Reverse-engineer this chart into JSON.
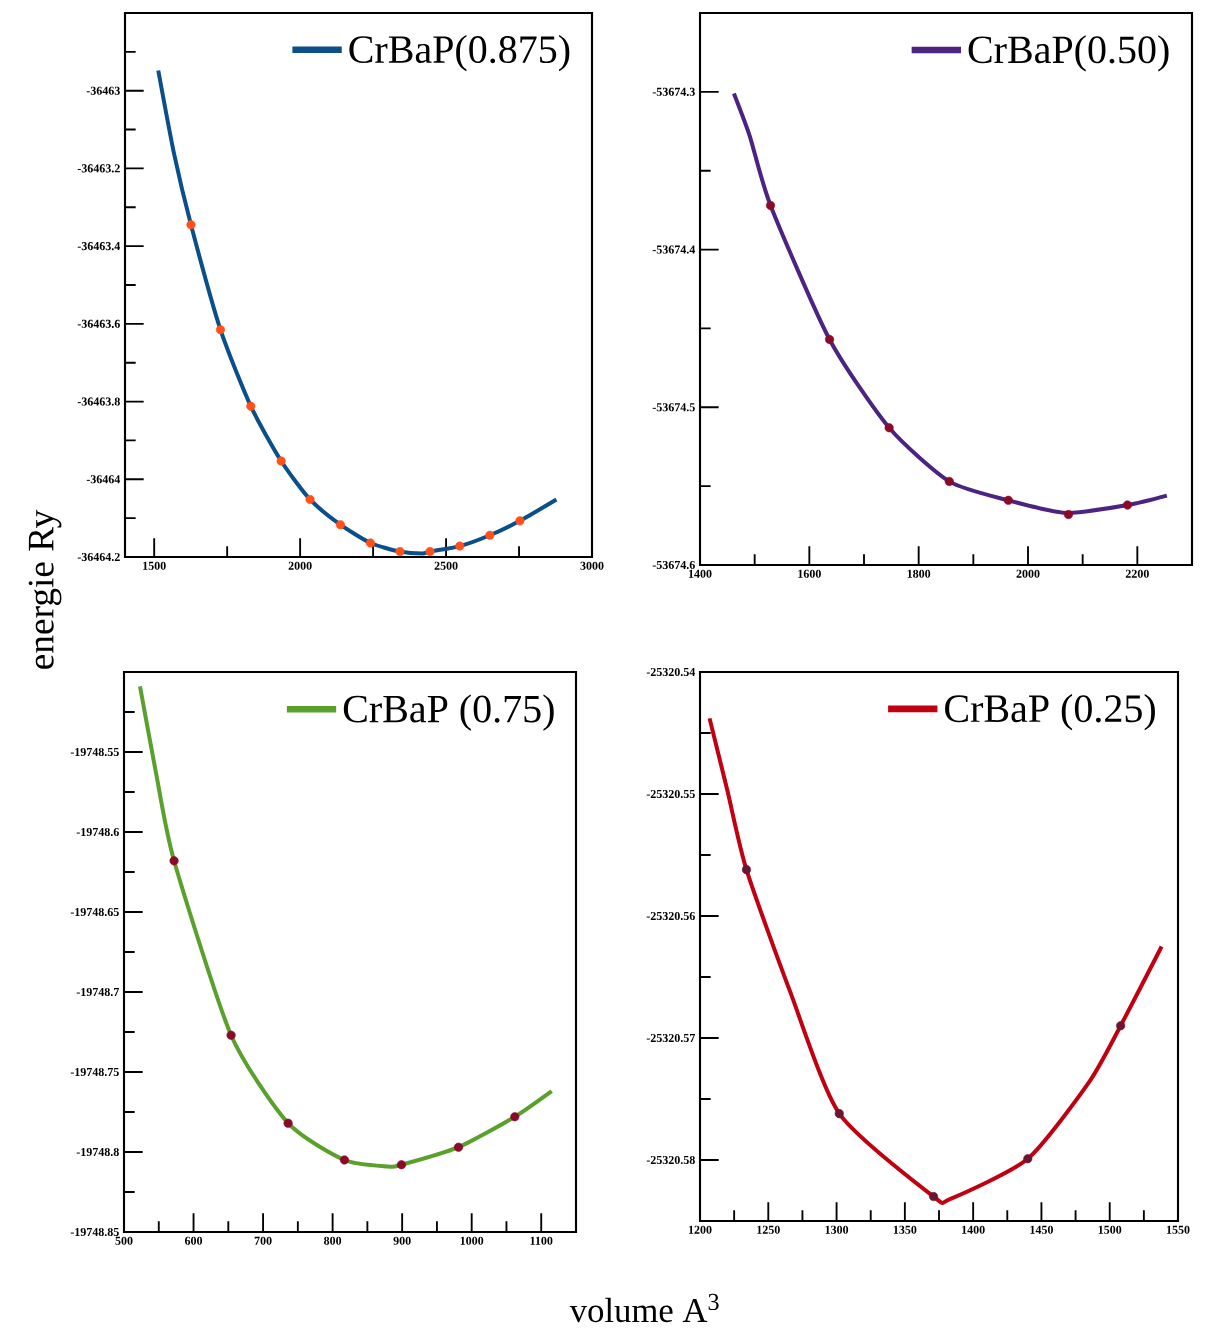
{
  "chart_data": [
    {
      "type": "line",
      "ylabel": "energie Ry",
      "legend": "top right",
      "xlim": [
        1400,
        3000
      ],
      "ylim": [
        -36464.2,
        -36462.8
      ],
      "xticks": [
        1500,
        {
          "value": 1750,
          "label": null
        },
        2000,
        {
          "value": 2250,
          "label": null
        },
        2500,
        {
          "value": 2750,
          "label": null
        },
        3000
      ],
      "yticks": [
        -36464.2,
        {
          "value": -36464.1,
          "label": null
        },
        -36464,
        {
          "value": -36463.9,
          "label": null
        },
        -36463.8,
        {
          "value": -36463.7,
          "label": null
        },
        -36463.6,
        {
          "value": -36463.5,
          "label": null
        },
        -36463.4,
        {
          "value": -36463.3,
          "label": null
        },
        -36463.2,
        {
          "value": -36463.1,
          "label": null
        },
        -36463,
        {
          "value": -36462.9,
          "label": null
        }
      ],
      "series": [
        {
          "name": "CrBaP(0.875)",
          "marker": "none",
          "color": "#0b4f8a",
          "x": [
            1514,
            1568,
            1626,
            1727,
            1831,
            1935,
            2034,
            2138,
            2241,
            2342,
            2419,
            2445,
            2547,
            2650,
            2753,
            2878
          ],
          "values": [
            -36462.948,
            -36463.162,
            -36463.345,
            -36463.615,
            -36463.812,
            -36463.953,
            -36464.052,
            -36464.117,
            -36464.164,
            -36464.186,
            -36464.191,
            -36464.186,
            -36464.172,
            -36464.144,
            -36464.107,
            -36464.052
          ]
        },
        {
          "type": "scatter",
          "marker": "circle",
          "color": "#ff4f1a",
          "x": [
            1626,
            1727,
            1831,
            1935,
            2034,
            2138,
            2241,
            2342,
            2445,
            2547,
            2650,
            2753
          ],
          "values": [
            -36463.345,
            -36463.615,
            -36463.812,
            -36463.953,
            -36464.052,
            -36464.117,
            -36464.164,
            -36464.186,
            -36464.186,
            -36464.172,
            -36464.144,
            -36464.107
          ]
        }
      ]
    },
    {
      "type": "line",
      "legend": "top right",
      "xlim": [
        1400,
        2300
      ],
      "ylim": [
        -53674.6,
        -53674.25
      ],
      "xticks": [
        1400,
        {
          "value": 1500,
          "label": null
        },
        1600,
        {
          "value": 1700,
          "label": null
        },
        1800,
        {
          "value": 1900,
          "label": null
        },
        2000,
        {
          "value": 2100,
          "label": null
        },
        2200
      ],
      "yticks": [
        -53674.6,
        {
          "value": -53674.55,
          "label": null
        },
        -53674.5,
        {
          "value": -53674.45,
          "label": null
        },
        -53674.4,
        {
          "value": -53674.35,
          "label": null
        },
        -53674.3
      ],
      "series": [
        {
          "name": "CrBaP(0.50)",
          "marker": "none",
          "color": "#4b2380",
          "x": [
            1462,
            1491,
            1529,
            1637,
            1746,
            1856,
            1964,
            2070,
            2182,
            2254
          ],
          "values": [
            -53674.301,
            -53674.328,
            -53674.372,
            -53674.457,
            -53674.513,
            -53674.547,
            -53674.559,
            -53674.567,
            -53674.562,
            -53674.556
          ]
        },
        {
          "type": "scatter",
          "marker": "circle",
          "color": "#8b0a2a",
          "x": [
            1529,
            1637,
            1746,
            1856,
            1964,
            2074,
            2182
          ],
          "values": [
            -53674.372,
            -53674.457,
            -53674.513,
            -53674.547,
            -53674.559,
            -53674.568,
            -53674.562
          ]
        }
      ]
    },
    {
      "type": "line",
      "legend": "top right",
      "xlim": [
        500,
        1150
      ],
      "ylim": [
        -19748.85,
        -19748.5
      ],
      "xticks": [
        500,
        {
          "value": 550,
          "label": null
        },
        600,
        {
          "value": 650,
          "label": null
        },
        700,
        {
          "value": 750,
          "label": null
        },
        800,
        {
          "value": 850,
          "label": null
        },
        900,
        {
          "value": 950,
          "label": null
        },
        1000,
        {
          "value": 1050,
          "label": null
        },
        1100
      ],
      "yticks": [
        -19748.85,
        {
          "value": -19748.825,
          "label": null
        },
        -19748.8,
        {
          "value": -19748.775,
          "label": null
        },
        -19748.75,
        {
          "value": -19748.725,
          "label": null
        },
        -19748.7,
        {
          "value": -19748.675,
          "label": null
        },
        -19748.65,
        {
          "value": -19748.625,
          "label": null
        },
        -19748.6,
        {
          "value": -19748.575,
          "label": null
        },
        -19748.55,
        {
          "value": -19748.525,
          "label": null
        }
      ],
      "series": [
        {
          "name": "CrBaP (0.75)",
          "marker": "none",
          "color": "#5aa02c",
          "x": [
            523,
            546,
            572,
            654,
            736,
            817,
            879,
            899,
            981,
            1062,
            1115
          ],
          "values": [
            -19748.509,
            -19748.563,
            -19748.618,
            -19748.727,
            -19748.782,
            -19748.805,
            -19748.809,
            -19748.808,
            -19748.797,
            -19748.778,
            -19748.762
          ]
        },
        {
          "type": "scatter",
          "marker": "circle",
          "color": "#8b0a2a",
          "x": [
            572,
            654,
            736,
            817,
            899,
            981,
            1062
          ],
          "values": [
            -19748.618,
            -19748.727,
            -19748.782,
            -19748.805,
            -19748.808,
            -19748.797,
            -19748.778
          ]
        }
      ]
    },
    {
      "type": "line",
      "xlabel": "volume A$^{3}$",
      "legend": "top right",
      "xlim": [
        1200,
        1550
      ],
      "ylim": [
        -25320.585,
        -25320.54
      ],
      "xticks": [
        1200,
        {
          "value": 1225,
          "label": null
        },
        1250,
        {
          "value": 1275,
          "label": null
        },
        1300,
        {
          "value": 1325,
          "label": null
        },
        1350,
        {
          "value": 1375,
          "label": null
        },
        1400,
        {
          "value": 1425,
          "label": null
        },
        1450,
        {
          "value": 1475,
          "label": null
        },
        1500,
        {
          "value": 1525,
          "label": null
        },
        1550
      ],
      "yticks": [
        -25320.58,
        {
          "value": -25320.575,
          "label": null
        },
        -25320.57,
        {
          "value": -25320.565,
          "label": null
        },
        -25320.56,
        {
          "value": -25320.555,
          "label": null
        },
        -25320.55,
        {
          "value": -25320.545,
          "label": null
        },
        -25320.54
      ],
      "series": [
        {
          "name": "CrBaP (0.25)",
          "marker": "none",
          "color": "#c00010",
          "x": [
            1207,
            1220,
            1234,
            1266,
            1302,
            1371,
            1383,
            1440,
            1485,
            1508,
            1538
          ],
          "values": [
            -25320.5438,
            -25320.5497,
            -25320.5562,
            -25320.5662,
            -25320.5762,
            -25320.583,
            -25320.5832,
            -25320.5799,
            -25320.5736,
            -25320.569,
            -25320.5625
          ]
        },
        {
          "type": "scatter",
          "marker": "circle",
          "color": "#6b1530",
          "x": [
            1234,
            1302,
            1371,
            1440,
            1508
          ],
          "values": [
            -25320.5562,
            -25320.5762,
            -25320.583,
            -25320.5799,
            -25320.569
          ]
        }
      ]
    }
  ]
}
